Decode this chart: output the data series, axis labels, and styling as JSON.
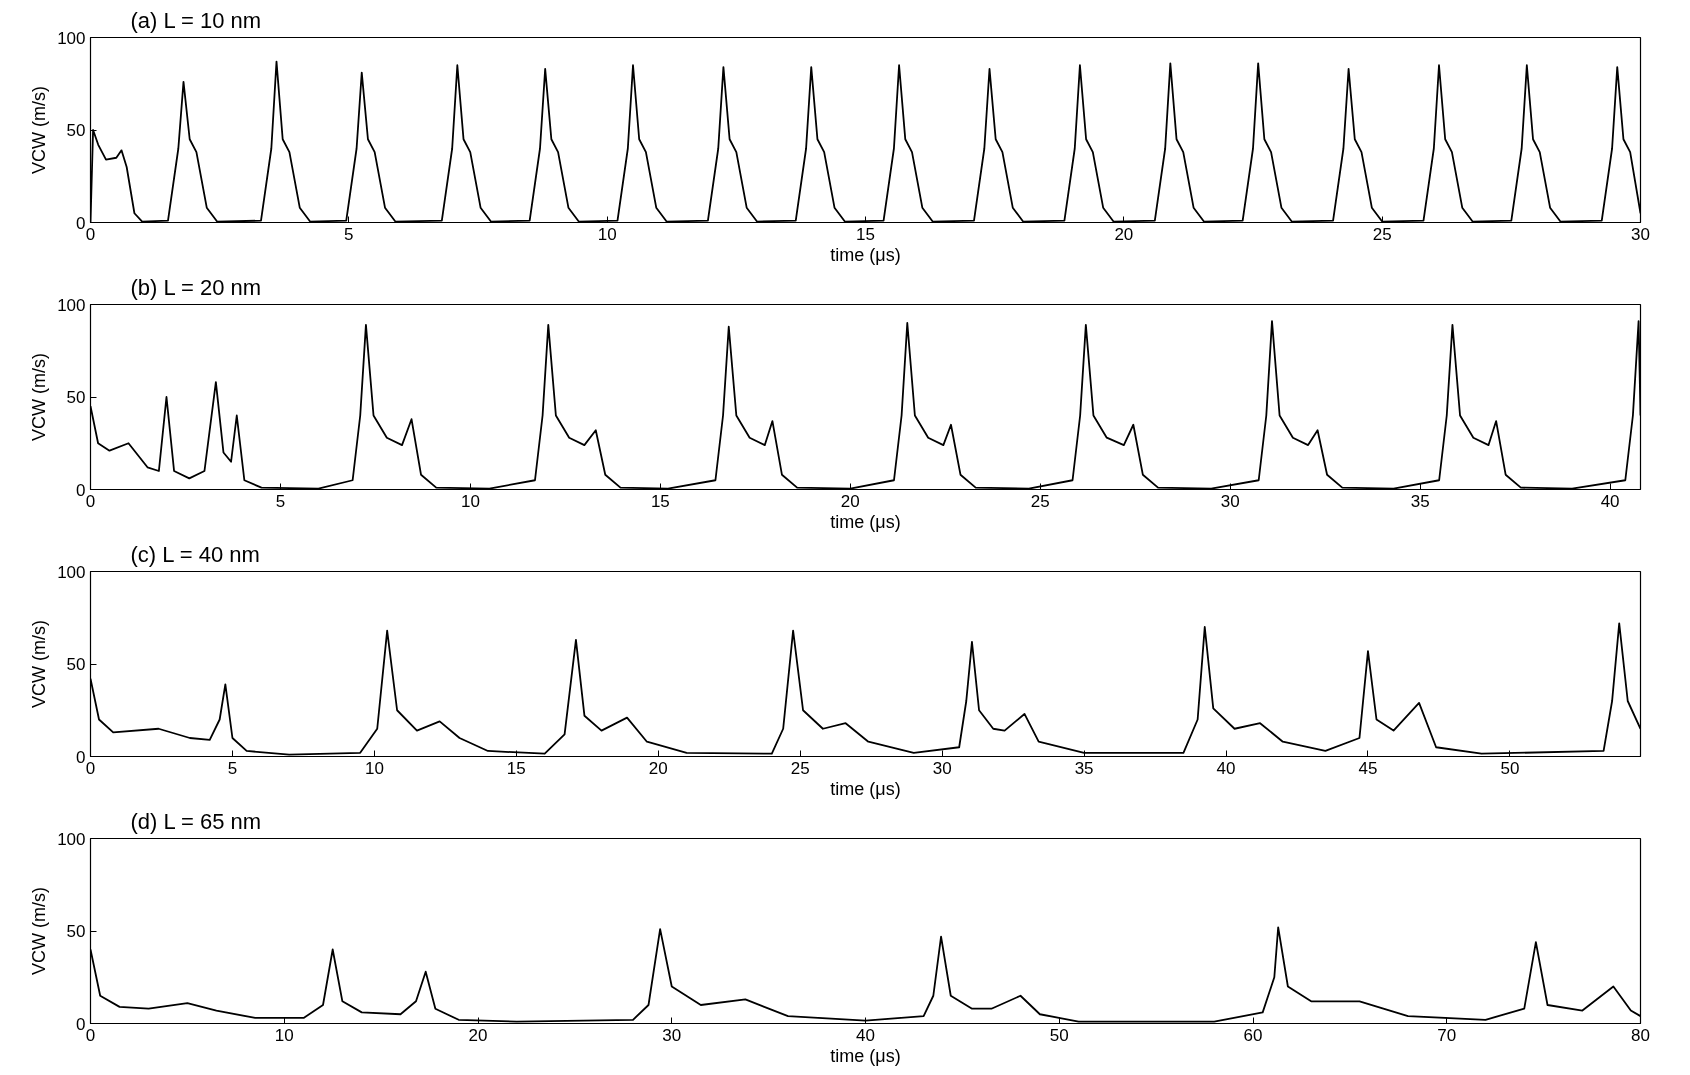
{
  "chart_data": [
    {
      "type": "line",
      "title": "(a) L = 10 nm",
      "xlabel": "time (μs)",
      "ylabel": "VCW (m/s)",
      "xlim": [
        0,
        30
      ],
      "xticks": [
        0,
        5,
        10,
        15,
        20,
        25,
        30
      ],
      "ylim": [
        0,
        100
      ],
      "yticks": [
        0,
        50,
        100
      ],
      "grid": false,
      "series": [
        {
          "color": "#000000",
          "x": [
            0,
            0.05,
            0.15,
            0.3,
            0.5,
            0.6,
            0.7,
            0.85,
            1.0,
            1.5,
            1.7,
            1.8,
            1.92,
            2.05,
            2.25,
            2.45,
            3.3,
            3.5,
            3.6,
            3.72,
            3.85,
            4.05,
            4.25,
            4.95,
            5.15,
            5.25,
            5.37,
            5.5,
            5.7,
            5.9,
            6.8,
            7.0,
            7.1,
            7.22,
            7.35,
            7.55,
            7.75,
            8.5,
            8.7,
            8.8,
            8.92,
            9.05,
            9.25,
            9.45,
            10.2,
            10.4,
            10.5,
            10.62,
            10.75,
            10.95,
            11.15,
            11.95,
            12.15,
            12.25,
            12.37,
            12.5,
            12.7,
            12.9,
            13.65,
            13.85,
            13.95,
            14.07,
            14.2,
            14.4,
            14.6,
            15.35,
            15.55,
            15.65,
            15.77,
            15.9,
            16.1,
            16.3,
            17.1,
            17.3,
            17.4,
            17.52,
            17.65,
            17.85,
            18.05,
            18.85,
            19.05,
            19.15,
            19.27,
            19.4,
            19.6,
            19.8,
            20.6,
            20.8,
            20.9,
            21.02,
            21.15,
            21.35,
            21.55,
            22.3,
            22.5,
            22.6,
            22.72,
            22.85,
            23.05,
            23.25,
            24.05,
            24.25,
            24.35,
            24.47,
            24.6,
            24.8,
            25.0,
            25.8,
            26.0,
            26.1,
            26.22,
            26.35,
            26.55,
            26.75,
            27.5,
            27.7,
            27.8,
            27.92,
            28.05,
            28.25,
            28.45,
            29.25,
            29.45,
            29.55,
            29.67,
            29.8,
            30.0
          ],
          "values": [
            0,
            50,
            42,
            34,
            35,
            39,
            30,
            5,
            0.5,
            1,
            40,
            76,
            45,
            38,
            8,
            0.5,
            1,
            40,
            87,
            45,
            38,
            8,
            0.5,
            1,
            40,
            81,
            45,
            38,
            8,
            0.5,
            1,
            40,
            85,
            45,
            38,
            8,
            0.5,
            1,
            40,
            83,
            45,
            38,
            8,
            0.5,
            1,
            40,
            85,
            45,
            38,
            8,
            0.5,
            1,
            40,
            84,
            45,
            38,
            8,
            0.5,
            1,
            40,
            84,
            45,
            38,
            8,
            0.5,
            1,
            40,
            85,
            45,
            38,
            8,
            0.5,
            1,
            40,
            83,
            45,
            38,
            8,
            0.5,
            1,
            40,
            85,
            45,
            38,
            8,
            0.5,
            1,
            40,
            86,
            45,
            38,
            8,
            0.5,
            1,
            40,
            86,
            45,
            38,
            8,
            0.5,
            1,
            40,
            83,
            45,
            38,
            8,
            0.5,
            1,
            40,
            85,
            45,
            38,
            8,
            0.5,
            1,
            40,
            85,
            45,
            38,
            8,
            0.5,
            1,
            40,
            84,
            45,
            38,
            5
          ]
        }
      ]
    },
    {
      "type": "line",
      "title": "(b) L = 20 nm",
      "xlabel": "time (μs)",
      "ylabel": "VCW (m/s)",
      "xlim": [
        0,
        40.8
      ],
      "xticks": [
        0,
        5,
        10,
        15,
        20,
        25,
        30,
        35,
        40
      ],
      "ylim": [
        0,
        100
      ],
      "yticks": [
        0,
        50,
        100
      ],
      "grid": false,
      "series": [
        {
          "color": "#000000",
          "x": [
            0,
            0.2,
            0.5,
            1.0,
            1.5,
            1.8,
            2.0,
            2.2,
            2.6,
            3.0,
            3.3,
            3.5,
            3.7,
            3.85,
            4.05,
            4.5,
            6.0,
            6.9,
            7.1,
            7.25,
            7.45,
            7.8,
            8.2,
            8.45,
            8.7,
            9.1,
            10.5,
            11.7,
            11.9,
            12.05,
            12.25,
            12.6,
            13.0,
            13.3,
            13.55,
            13.95,
            15.2,
            16.45,
            16.65,
            16.8,
            17.0,
            17.35,
            17.75,
            17.95,
            18.2,
            18.6,
            20.0,
            21.15,
            21.35,
            21.5,
            21.7,
            22.05,
            22.45,
            22.65,
            22.9,
            23.3,
            24.7,
            25.85,
            26.05,
            26.2,
            26.4,
            26.75,
            27.2,
            27.45,
            27.7,
            28.1,
            29.5,
            30.75,
            30.95,
            31.1,
            31.3,
            31.65,
            32.05,
            32.3,
            32.55,
            32.95,
            34.3,
            35.5,
            35.7,
            35.85,
            36.05,
            36.4,
            36.8,
            37.0,
            37.25,
            37.65,
            39.0,
            40.4,
            40.6,
            40.75,
            40.8
          ],
          "values": [
            45,
            25,
            21,
            25,
            12,
            10,
            50,
            10,
            6,
            10,
            58,
            20,
            15,
            40,
            5,
            1,
            0.5,
            5,
            40,
            89,
            40,
            28,
            24,
            38,
            8,
            1,
            0.5,
            5,
            40,
            89,
            40,
            28,
            24,
            32,
            8,
            1,
            0.5,
            5,
            40,
            88,
            40,
            28,
            24,
            37,
            8,
            1,
            0.5,
            5,
            40,
            90,
            40,
            28,
            24,
            35,
            8,
            1,
            0.5,
            5,
            40,
            89,
            40,
            28,
            24,
            35,
            8,
            1,
            0.5,
            5,
            40,
            91,
            40,
            28,
            24,
            32,
            8,
            1,
            0.5,
            5,
            40,
            89,
            40,
            28,
            24,
            37,
            8,
            1,
            0.5,
            5,
            40,
            91,
            40
          ]
        }
      ]
    },
    {
      "type": "line",
      "title": "(c) L = 40 nm",
      "xlabel": "time (μs)",
      "ylabel": "VCW (m/s)",
      "xlim": [
        0,
        54.6
      ],
      "xticks": [
        0,
        5,
        10,
        15,
        20,
        25,
        30,
        35,
        40,
        45,
        50
      ],
      "ylim": [
        0,
        100
      ],
      "yticks": [
        0,
        50,
        100
      ],
      "grid": false,
      "series": [
        {
          "color": "#000000",
          "x": [
            0,
            0.3,
            0.8,
            2.4,
            3.5,
            4.2,
            4.55,
            4.75,
            5.0,
            5.5,
            7,
            9.5,
            10.1,
            10.45,
            10.8,
            11.5,
            12.3,
            13.0,
            14,
            16,
            16.7,
            17.1,
            17.4,
            18,
            18.9,
            19.6,
            21,
            24,
            24.4,
            24.75,
            25.1,
            25.8,
            26.6,
            27.4,
            29,
            30.6,
            30.85,
            31.05,
            31.3,
            31.8,
            32.2,
            32.9,
            33.4,
            35,
            38.5,
            39,
            39.25,
            39.55,
            40.3,
            41.2,
            42,
            43.5,
            44.7,
            45,
            45.3,
            45.9,
            46.8,
            47.4,
            49,
            53.3,
            53.6,
            53.85,
            54.15,
            54.6
          ],
          "values": [
            42,
            20,
            13,
            15,
            10,
            9,
            20,
            39,
            10,
            3,
            1,
            2,
            15,
            68,
            25,
            14,
            19,
            10,
            3,
            1.5,
            12,
            63,
            22,
            14,
            21,
            8,
            2,
            1.5,
            15,
            68,
            25,
            15,
            18,
            8,
            2,
            5,
            30,
            62,
            25,
            15,
            14,
            23,
            8,
            2,
            2,
            20,
            70,
            26,
            15,
            18,
            8,
            3,
            10,
            57,
            20,
            14,
            29,
            5,
            1.5,
            3,
            30,
            72,
            30,
            15
          ]
        }
      ]
    },
    {
      "type": "line",
      "title": "(d) L = 65 nm",
      "xlabel": "time (μs)",
      "ylabel": "VCW (m/s)",
      "xlim": [
        0,
        80
      ],
      "xticks": [
        0,
        10,
        20,
        30,
        40,
        50,
        60,
        70,
        80
      ],
      "ylim": [
        0,
        100
      ],
      "yticks": [
        0,
        50,
        100
      ],
      "grid": false,
      "series": [
        {
          "color": "#000000",
          "x": [
            0,
            0.5,
            1.5,
            3,
            5,
            6.5,
            8.5,
            11,
            12,
            12.5,
            13,
            14,
            16,
            16.8,
            17.3,
            17.8,
            19,
            22,
            28,
            28.8,
            29.4,
            30,
            31.5,
            33.8,
            36,
            40,
            43,
            43.5,
            43.9,
            44.4,
            45.5,
            46.5,
            48,
            49,
            51,
            58,
            60.5,
            61.1,
            61.3,
            61.8,
            63,
            65.5,
            68,
            72,
            74,
            74.6,
            75.2,
            77,
            78.6,
            79.5,
            80
          ],
          "values": [
            40,
            15,
            9,
            8,
            11,
            7,
            3,
            3,
            10,
            40,
            12,
            6,
            5,
            12,
            28,
            8,
            2,
            1,
            2,
            10,
            51,
            20,
            10,
            13,
            4,
            1.5,
            4,
            15,
            47,
            15,
            8,
            8,
            15,
            5,
            1,
            1,
            6,
            25,
            52,
            20,
            12,
            12,
            4,
            2,
            8,
            44,
            10,
            7,
            20,
            7,
            4
          ]
        }
      ]
    }
  ]
}
